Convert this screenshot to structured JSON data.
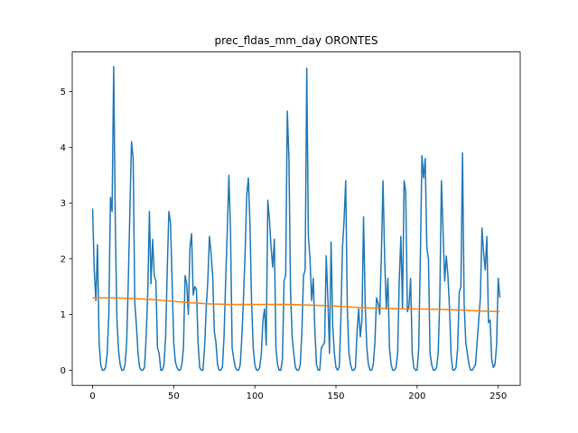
{
  "chart_data": {
    "type": "line",
    "title": "prec_fldas_mm_day ORONTES",
    "xlim": [
      -12.55,
      263.55
    ],
    "ylim": [
      -0.272,
      5.712
    ],
    "xticks": [
      0,
      50,
      100,
      150,
      200,
      250
    ],
    "yticks": [
      0,
      1,
      2,
      3,
      4,
      5
    ],
    "series": [
      {
        "color": "#1f77b4",
        "x": [
          0,
          1,
          2,
          3,
          4,
          5,
          6,
          7,
          8,
          9,
          10,
          11,
          12,
          13,
          14,
          15,
          16,
          17,
          18,
          19,
          20,
          21,
          22,
          23,
          24,
          25,
          26,
          27,
          28,
          29,
          30,
          31,
          32,
          33,
          34,
          35,
          36,
          37,
          38,
          39,
          40,
          41,
          42,
          43,
          44,
          45,
          46,
          47,
          48,
          49,
          50,
          51,
          52,
          53,
          54,
          55,
          56,
          57,
          58,
          59,
          60,
          61,
          62,
          63,
          64,
          65,
          66,
          67,
          68,
          69,
          70,
          71,
          72,
          73,
          74,
          75,
          76,
          77,
          78,
          79,
          80,
          81,
          82,
          83,
          84,
          85,
          86,
          87,
          88,
          89,
          90,
          91,
          92,
          93,
          94,
          95,
          96,
          97,
          98,
          99,
          100,
          101,
          102,
          103,
          104,
          105,
          106,
          107,
          108,
          109,
          110,
          111,
          112,
          113,
          114,
          115,
          116,
          117,
          118,
          119,
          120,
          121,
          122,
          123,
          124,
          125,
          126,
          127,
          128,
          129,
          130,
          131,
          132,
          133,
          134,
          135,
          136,
          137,
          138,
          139,
          140,
          141,
          142,
          143,
          144,
          145,
          146,
          147,
          148,
          149,
          150,
          151,
          152,
          153,
          154,
          155,
          156,
          157,
          158,
          159,
          160,
          161,
          162,
          163,
          164,
          165,
          166,
          167,
          168,
          169,
          170,
          171,
          172,
          173,
          174,
          175,
          176,
          177,
          178,
          179,
          180,
          181,
          182,
          183,
          184,
          185,
          186,
          187,
          188,
          189,
          190,
          191,
          192,
          193,
          194,
          195,
          196,
          197,
          198,
          199,
          200,
          201,
          202,
          203,
          204,
          205,
          206,
          207,
          208,
          209,
          210,
          211,
          212,
          213,
          214,
          215,
          216,
          217,
          218,
          219,
          220,
          221,
          222,
          223,
          224,
          225,
          226,
          227,
          228,
          229,
          230,
          231,
          232,
          233,
          234,
          235,
          236,
          237,
          238,
          239,
          240,
          241,
          242,
          243,
          244,
          245,
          246,
          247,
          248,
          249,
          250,
          251
        ],
        "values": [
          2.9,
          1.8,
          1.25,
          2.25,
          0.5,
          0.1,
          0,
          0,
          0.05,
          0.3,
          1.0,
          3.1,
          2.85,
          5.45,
          2.6,
          0.9,
          0.35,
          0.1,
          0,
          0,
          0.1,
          0.5,
          1.6,
          2.9,
          4.1,
          3.8,
          1.2,
          0.8,
          0.3,
          0.05,
          0,
          0,
          0.05,
          0.6,
          1.4,
          2.85,
          1.55,
          2.35,
          1.7,
          1.6,
          0.4,
          0.3,
          0,
          0,
          0.1,
          0.6,
          1.8,
          2.85,
          2.65,
          1.6,
          0.5,
          0.15,
          0.05,
          0,
          0,
          0.1,
          0.4,
          1.7,
          1.55,
          1.0,
          2.2,
          2.45,
          1.35,
          1.5,
          1.45,
          0.5,
          0.05,
          0,
          0,
          0.4,
          1.1,
          1.6,
          2.4,
          2.1,
          1.7,
          0.7,
          0.5,
          0.1,
          0,
          0,
          0.05,
          0.6,
          1.6,
          2.5,
          3.5,
          2.5,
          0.4,
          0.2,
          0.05,
          0,
          0,
          0.1,
          0.6,
          1.3,
          2.1,
          3.15,
          3.45,
          2.6,
          1.2,
          0.4,
          0.1,
          0,
          0,
          0.05,
          0.3,
          0.9,
          1.1,
          0.45,
          3.05,
          2.7,
          2.2,
          1.85,
          2.35,
          0.4,
          0.1,
          0,
          0,
          0.2,
          1.6,
          1.7,
          4.65,
          3.8,
          1.4,
          0.6,
          0.3,
          0.05,
          0,
          0,
          0.1,
          0.7,
          1.7,
          1.8,
          5.42,
          2.4,
          2.0,
          1.25,
          1.65,
          0.7,
          0.1,
          0,
          0,
          0.4,
          0.45,
          0.5,
          2.05,
          1.3,
          0.3,
          2.3,
          0.8,
          0.3,
          0.05,
          0,
          0.05,
          0.9,
          2.2,
          2.7,
          3.4,
          1.1,
          0.3,
          0.1,
          0,
          0,
          0.05,
          0.7,
          1.1,
          0.6,
          0.9,
          2.75,
          1.2,
          0.4,
          0.1,
          0,
          0,
          0.1,
          0.5,
          1.3,
          1.2,
          1.0,
          2.1,
          3.4,
          2.0,
          1.1,
          1.65,
          0.4,
          0.1,
          0,
          0,
          0.05,
          0.3,
          1.6,
          2.4,
          1.1,
          3.4,
          3.2,
          1.05,
          1.15,
          1.65,
          0.3,
          0.05,
          0,
          0,
          0.4,
          2.0,
          3.85,
          3.45,
          3.8,
          2.2,
          2.0,
          0.3,
          0.1,
          0,
          0,
          0.05,
          0.3,
          1.3,
          3.4,
          2.5,
          1.6,
          2.05,
          1.7,
          1.1,
          0.25,
          0,
          0,
          0.05,
          0.4,
          1.4,
          1.5,
          3.9,
          1.2,
          0.5,
          0.3,
          0.1,
          0,
          0,
          0.05,
          0.1,
          0.5,
          0.9,
          1.3,
          2.55,
          2.1,
          1.8,
          2.4,
          0.85,
          0.9,
          0.2,
          0.05,
          0.1,
          0.45,
          1.65,
          1.3
        ]
      },
      {
        "color": "#ff7f0e",
        "x": [
          0,
          12,
          24,
          36,
          48,
          60,
          72,
          84,
          96,
          108,
          120,
          132,
          144,
          156,
          168,
          180,
          192,
          204,
          216,
          228,
          240,
          251
        ],
        "values": [
          1.3,
          1.3,
          1.29,
          1.27,
          1.24,
          1.21,
          1.19,
          1.18,
          1.18,
          1.18,
          1.18,
          1.17,
          1.16,
          1.14,
          1.12,
          1.11,
          1.1,
          1.1,
          1.09,
          1.08,
          1.06,
          1.05
        ]
      }
    ]
  }
}
